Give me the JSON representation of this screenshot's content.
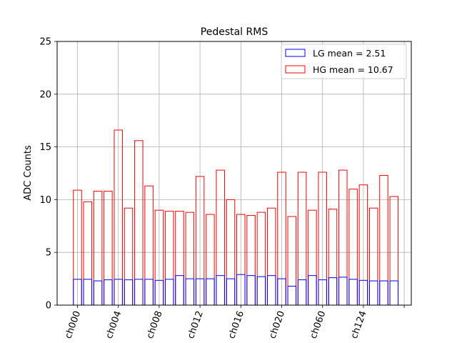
{
  "chart_data": {
    "type": "bar",
    "title": "Pedestal RMS",
    "ylabel": "ADC Counts",
    "xlabel": "",
    "ylim": [
      0,
      25
    ],
    "yticks": [
      0,
      5,
      10,
      15,
      20,
      25
    ],
    "grid": true,
    "legend_position": "top-right",
    "tick_labels": [
      "ch000",
      "ch004",
      "ch008",
      "ch012",
      "ch016",
      "ch020",
      "ch060",
      "ch124"
    ],
    "series": [
      {
        "name": "LG mean = 2.51",
        "color": "#0000ff",
        "values": [
          2.45,
          2.45,
          2.3,
          2.4,
          2.45,
          2.4,
          2.45,
          2.45,
          2.35,
          2.45,
          2.8,
          2.5,
          2.5,
          2.5,
          2.8,
          2.5,
          2.9,
          2.8,
          2.7,
          2.8,
          2.5,
          1.8,
          2.4,
          2.8,
          2.4,
          2.6,
          2.65,
          2.45,
          2.35,
          2.3,
          2.3,
          2.3
        ]
      },
      {
        "name": "HG mean = 10.67",
        "color": "#ff0000",
        "values": [
          10.9,
          9.8,
          10.8,
          10.8,
          16.6,
          9.2,
          15.6,
          11.3,
          9.0,
          8.9,
          8.9,
          8.8,
          12.2,
          8.6,
          12.8,
          10.0,
          8.6,
          8.5,
          8.8,
          9.2,
          12.6,
          8.4,
          12.6,
          9.0,
          12.6,
          9.1,
          12.8,
          11.0,
          11.4,
          9.2,
          12.3,
          10.3
        ]
      }
    ]
  }
}
